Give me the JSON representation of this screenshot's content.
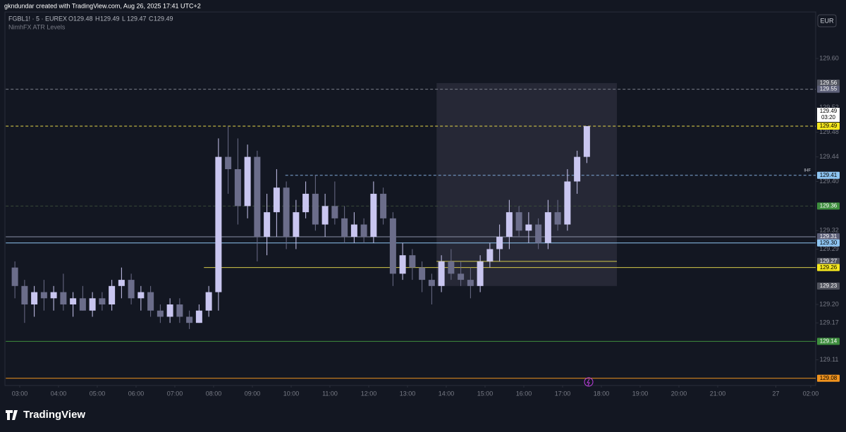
{
  "chart_data": {
    "type": "candlestick",
    "watermark": "gkndundar created with TradingView.com, Aug 26, 2025 17:41 UTC+2",
    "symbol": "FGBL1! · 5 · EUREX",
    "ohlc_labels": [
      "O",
      "H",
      "L",
      "C"
    ],
    "ohlc_values": [
      129.48,
      129.49,
      129.47,
      129.49
    ],
    "indicator": "NimhFX ATR Levels",
    "currency": "EUR",
    "brand": "TradingView",
    "countdown": "03:20",
    "level_tag": "IHF",
    "up_color": "#c9c6f0",
    "down_color": "#6b6d8a",
    "x": [
      2.75,
      3,
      3.25,
      3.5,
      3.75,
      4,
      4.25,
      4.5,
      4.75,
      5,
      5.25,
      5.5,
      5.75,
      6,
      6.25,
      6.5,
      6.75,
      7,
      7.25,
      7.5,
      7.75,
      8,
      8.25,
      8.5,
      8.75,
      9,
      9.25,
      9.5,
      9.75,
      10,
      10.25,
      10.5,
      10.75,
      11,
      11.25,
      11.5,
      11.75,
      12,
      12.25,
      12.5,
      12.75,
      13,
      13.25,
      13.5,
      13.75,
      14,
      14.25,
      14.5,
      14.75,
      15,
      15.25,
      15.5,
      15.75,
      16,
      16.25,
      16.5,
      16.75,
      17,
      17.25,
      17.5
    ],
    "open": [
      129.26,
      129.23,
      129.2,
      129.22,
      129.21,
      129.22,
      129.2,
      129.21,
      129.19,
      129.21,
      129.2,
      129.23,
      129.24,
      129.21,
      129.22,
      129.19,
      129.18,
      129.2,
      129.18,
      129.17,
      129.19,
      129.22,
      129.44,
      129.42,
      129.36,
      129.44,
      129.31,
      129.35,
      129.39,
      129.31,
      129.35,
      129.38,
      129.33,
      129.36,
      129.34,
      129.31,
      129.33,
      129.31,
      129.38,
      129.34,
      129.25,
      129.28,
      129.26,
      129.24,
      129.23,
      129.27,
      129.25,
      129.24,
      129.23,
      129.27,
      129.29,
      129.31,
      129.35,
      129.32,
      129.33,
      129.3,
      129.35,
      129.33,
      129.4,
      129.44
    ],
    "high": [
      129.27,
      129.24,
      129.23,
      129.24,
      129.23,
      129.25,
      129.22,
      129.23,
      129.22,
      129.22,
      129.24,
      129.26,
      129.25,
      129.23,
      129.23,
      129.2,
      129.21,
      129.21,
      129.19,
      129.2,
      129.23,
      129.47,
      129.49,
      129.47,
      129.46,
      129.45,
      129.38,
      129.42,
      129.4,
      129.37,
      129.4,
      129.41,
      129.38,
      129.4,
      129.36,
      129.35,
      129.34,
      129.4,
      129.39,
      129.35,
      129.3,
      129.29,
      129.27,
      129.25,
      129.28,
      129.29,
      129.27,
      129.26,
      129.28,
      129.3,
      129.33,
      129.37,
      129.36,
      129.35,
      129.34,
      129.37,
      129.37,
      129.42,
      129.45,
      129.49
    ],
    "low": [
      129.21,
      129.17,
      129.18,
      129.19,
      129.19,
      129.19,
      129.18,
      129.19,
      129.18,
      129.19,
      129.19,
      129.21,
      129.2,
      129.19,
      129.18,
      129.17,
      129.17,
      129.17,
      129.16,
      129.17,
      129.18,
      129.19,
      129.38,
      129.33,
      129.34,
      129.27,
      129.28,
      129.31,
      129.29,
      129.29,
      129.34,
      129.32,
      129.31,
      129.33,
      129.3,
      129.3,
      129.3,
      129.3,
      129.33,
      129.23,
      129.24,
      129.24,
      129.22,
      129.2,
      129.22,
      129.24,
      129.23,
      129.21,
      129.22,
      129.26,
      129.27,
      129.29,
      129.31,
      129.3,
      129.29,
      129.29,
      129.32,
      129.32,
      129.38,
      129.43
    ],
    "close": [
      129.23,
      129.2,
      129.22,
      129.21,
      129.22,
      129.2,
      129.21,
      129.19,
      129.21,
      129.2,
      129.23,
      129.24,
      129.21,
      129.22,
      129.19,
      129.18,
      129.2,
      129.18,
      129.17,
      129.19,
      129.22,
      129.44,
      129.42,
      129.36,
      129.44,
      129.31,
      129.35,
      129.39,
      129.31,
      129.35,
      129.38,
      129.33,
      129.36,
      129.34,
      129.31,
      129.33,
      129.31,
      129.38,
      129.34,
      129.25,
      129.28,
      129.26,
      129.24,
      129.23,
      129.27,
      129.25,
      129.24,
      129.23,
      129.27,
      129.29,
      129.31,
      129.35,
      129.32,
      129.33,
      129.3,
      129.35,
      129.33,
      129.4,
      129.44,
      129.49
    ],
    "ylim": [
      129.05,
      129.65
    ],
    "xlim": [
      2.64,
      23.55
    ],
    "yticks": [
      {
        "value": 129.6,
        "label": "129.60"
      },
      129.52,
      129.48,
      129.44,
      {
        "value": 129.4,
        "label": "129.40"
      },
      129.32,
      129.29,
      {
        "value": 129.2,
        "label": "129.20"
      },
      129.17,
      129.11
    ],
    "xticks": [
      {
        "value": 3,
        "label": "03:00"
      },
      {
        "value": 4,
        "label": "04:00"
      },
      {
        "value": 5,
        "label": "05:00"
      },
      {
        "value": 6,
        "label": "06:00"
      },
      {
        "value": 7,
        "label": "07:00"
      },
      {
        "value": 8,
        "label": "08:00"
      },
      {
        "value": 9,
        "label": "09:00"
      },
      {
        "value": 10,
        "label": "10:00"
      },
      {
        "value": 11,
        "label": "11:00"
      },
      {
        "value": 12,
        "label": "12:00"
      },
      {
        "value": 13,
        "label": "13:00"
      },
      {
        "value": 14,
        "label": "14:00"
      },
      {
        "value": 15,
        "label": "15:00"
      },
      {
        "value": 16,
        "label": "16:00"
      },
      {
        "value": 17,
        "label": "17:00"
      },
      {
        "value": 18,
        "label": "18:00"
      },
      {
        "value": 19,
        "label": "19:00"
      },
      {
        "value": 20,
        "label": "20:00"
      },
      {
        "value": 21,
        "label": "21:00"
      },
      {
        "value": 22.5,
        "label": "27"
      },
      {
        "value": 23.4,
        "label": "02:00"
      }
    ],
    "box": {
      "x0": 13.75,
      "x1": 18.4,
      "top": 129.56,
      "bottom": 129.23,
      "mid": 129.27,
      "color": "#2a2c3a",
      "mid_color": "#d4c94a",
      "label_color": "#50535e"
    },
    "levels": [
      {
        "value": 129.55,
        "color": "#7c7f8c",
        "label_bg": "#5d6079",
        "label_fg": "#ffffff",
        "dash": true,
        "from": 2.64
      },
      {
        "value": 129.49,
        "color": "#e6d84a",
        "label_bg": "#f5e71e",
        "label_fg": "#000000",
        "dash": true,
        "from": 2.64
      },
      {
        "value": 129.41,
        "color": "#7fa8d8",
        "label_bg": "#8ec5f2",
        "label_fg": "#000000",
        "dash": true,
        "from": 9.85
      },
      {
        "value": 129.36,
        "color": "#3a4a3a",
        "label_bg": "#3e8e3e",
        "label_fg": "#ffffff",
        "dash": true,
        "from": 2.64
      },
      {
        "value": 129.31,
        "color": "#8a8fa6",
        "label_bg": "#5d6079",
        "label_fg": "#ffffff",
        "dash": false,
        "from": 2.64
      },
      {
        "value": 129.3,
        "label": "129.30",
        "color": "#8ec5f2",
        "label_bg": "#8ec5f2",
        "label_fg": "#000000",
        "dash": false,
        "from": 2.64
      },
      {
        "value": 129.26,
        "color": "#d4c94a",
        "label_bg": "#f5e71e",
        "label_fg": "#000000",
        "dash": false,
        "from": 7.75
      },
      {
        "value": 129.14,
        "color": "#3e8e3e",
        "label_bg": "#3e8e3e",
        "label_fg": "#ffffff",
        "dash": false,
        "from": 2.64
      },
      {
        "value": 129.08,
        "color": "#f0931e",
        "label_bg": "#f0931e",
        "label_fg": "#000000",
        "dash": false,
        "from": 2.64
      }
    ]
  }
}
